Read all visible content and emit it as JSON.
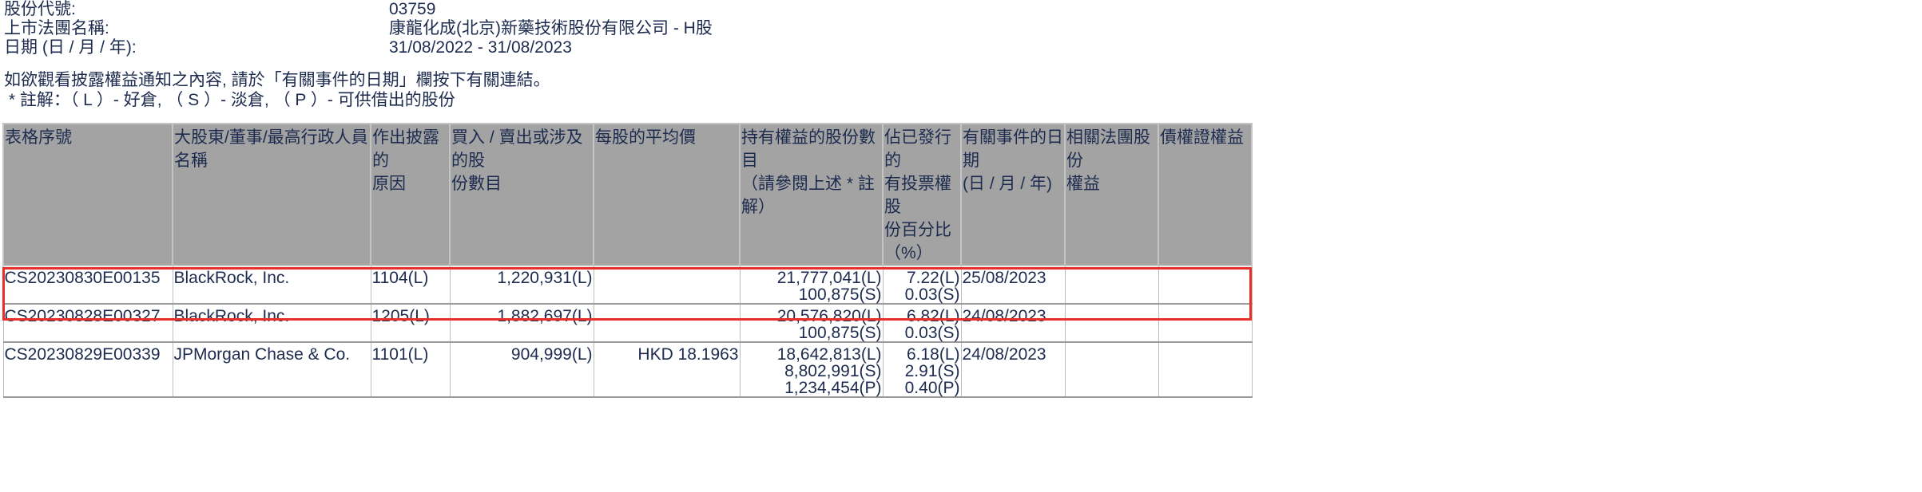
{
  "info": [
    {
      "label": "股份代號:",
      "value": "03759"
    },
    {
      "label": "上市法團名稱:",
      "value": "康龍化成(北京)新藥技術股份有限公司 - H股"
    },
    {
      "label": "日期 (日 / 月 / 年):",
      "value": "31/08/2022 - 31/08/2023"
    }
  ],
  "notes": [
    "如欲觀看披露權益通知之內容, 請於「有關事件的日期」欄按下有關連結。",
    " * 註解：（ L ）- 好倉, （ S ）- 淡倉, （ P ）- 可供借出的股份"
  ],
  "table": {
    "headers": [
      "表格序號",
      "大股東/董事/最高行政人員名稱",
      "作出披露的\n原因",
      "買入 / 賣出或涉及的股\n份數目",
      "每股的平均價",
      "持有權益的股份數目\n（請參閱上述 * 註解）",
      "佔已發行的\n有投票權股\n份百分比\n（%）",
      "有關事件的日期\n(日 / 月 / 年)",
      "相關法團股份\n權益",
      "債權證權益"
    ],
    "rows": [
      {
        "form": "CS20230830E00135",
        "name": "BlackRock, Inc.",
        "reason": "1104(L)",
        "shares_traded": "1,220,931(L)",
        "avg_price": "",
        "holdings": [
          "21,777,041(L)",
          "100,875(S)"
        ],
        "percent": [
          "7.22(L)",
          "0.03(S)"
        ],
        "date": "25/08/2023",
        "corp_interest": "",
        "debenture": "",
        "highlighted": false
      },
      {
        "form": "CS20230828E00327",
        "name": "BlackRock, Inc.",
        "reason": "1205(L)",
        "shares_traded": "1,882,697(L)",
        "avg_price": "",
        "holdings": [
          "20,576,820(L)",
          "100,875(S)"
        ],
        "percent": [
          "6.82(L)",
          "0.03(S)"
        ],
        "date": "24/08/2023",
        "corp_interest": "",
        "debenture": "",
        "highlighted": false
      },
      {
        "form": "CS20230829E00339",
        "name": "JPMorgan Chase & Co.",
        "reason": "1101(L)",
        "shares_traded": "904,999(L)",
        "avg_price": "HKD 18.1963",
        "holdings": [
          "18,642,813(L)",
          "8,802,991(S)",
          "1,234,454(P)"
        ],
        "percent": [
          "6.18(L)",
          "2.91(S)",
          "0.40(P)"
        ],
        "date": "24/08/2023",
        "corp_interest": "",
        "debenture": "",
        "highlighted": true
      }
    ]
  },
  "colors": {
    "text": "#1d2b4f",
    "header_bg": "#a3a3a3",
    "highlight": "#e8302a"
  }
}
